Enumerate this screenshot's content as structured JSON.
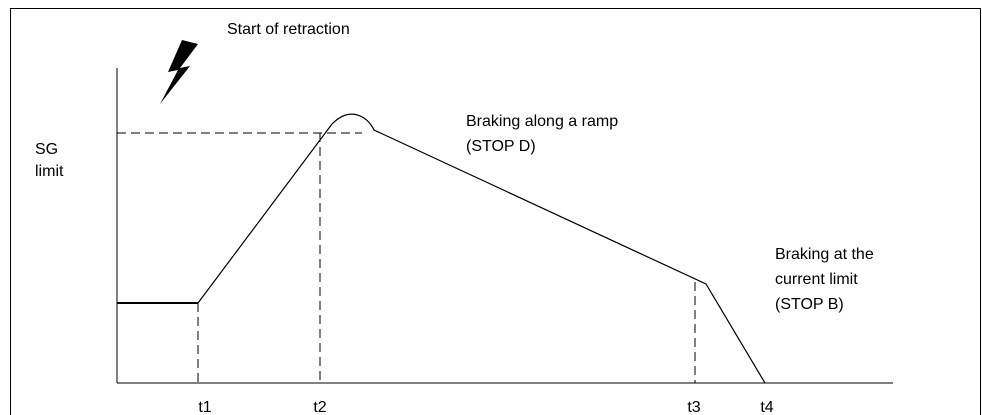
{
  "annotation": "Start of retraction",
  "y_label": [
    "SG",
    "limit"
  ],
  "ramp_label": [
    "Braking along a ramp",
    "(STOP D)"
  ],
  "current_label": [
    "Braking at the",
    "current limit",
    "(STOP B)"
  ],
  "time_labels": [
    "t1",
    "t2",
    "t3",
    "t4"
  ]
}
